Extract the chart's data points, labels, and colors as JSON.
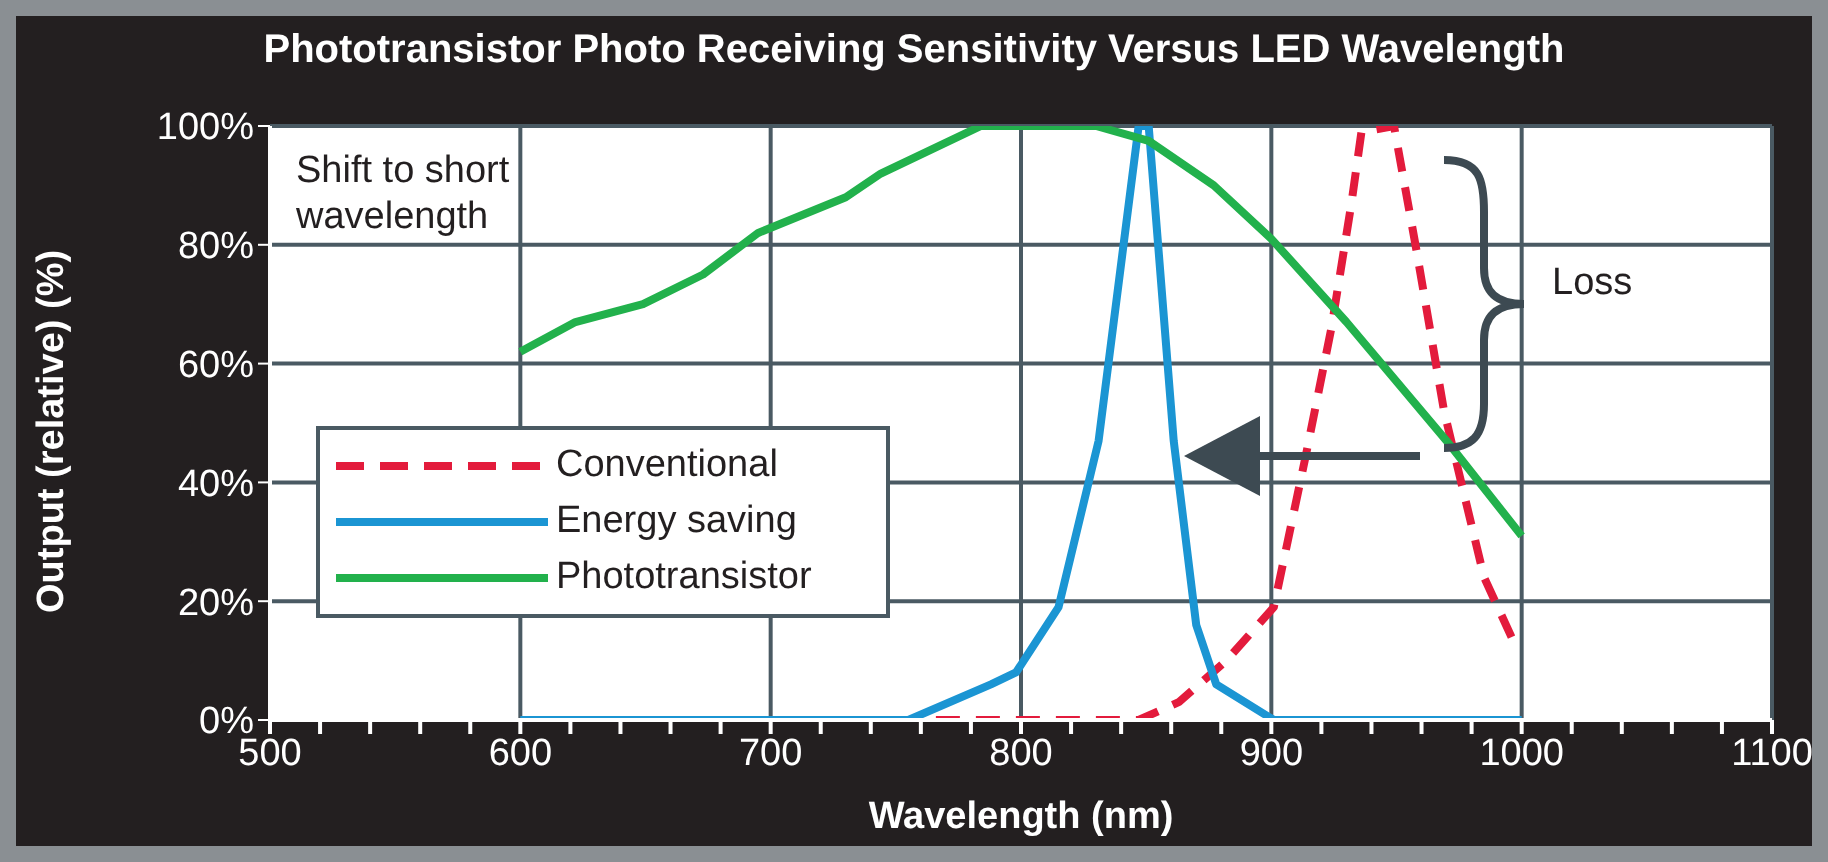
{
  "chart_data": {
    "type": "line",
    "title": "Phototransistor Photo Receiving Sensitivity Versus LED Wavelength",
    "xlabel": "Wavelength (nm)",
    "ylabel": "Output (relative) (%)",
    "xlim": [
      500,
      1100
    ],
    "xticks": [
      500,
      {
        "value": 520,
        "label": null
      },
      {
        "value": 540,
        "label": null
      },
      {
        "value": 560,
        "label": null
      },
      {
        "value": 580,
        "label": null
      },
      600,
      {
        "value": 620,
        "label": null
      },
      {
        "value": 640,
        "label": null
      },
      {
        "value": 660,
        "label": null
      },
      {
        "value": 680,
        "label": null
      },
      700,
      {
        "value": 720,
        "label": null
      },
      {
        "value": 740,
        "label": null
      },
      {
        "value": 760,
        "label": null
      },
      {
        "value": 780,
        "label": null
      },
      800,
      {
        "value": 820,
        "label": null
      },
      {
        "value": 840,
        "label": null
      },
      {
        "value": 860,
        "label": null
      },
      {
        "value": 880,
        "label": null
      },
      900,
      {
        "value": 920,
        "label": null
      },
      {
        "value": 940,
        "label": null
      },
      {
        "value": 960,
        "label": null
      },
      {
        "value": 980,
        "label": null
      },
      1000,
      {
        "value": 1020,
        "label": null
      },
      {
        "value": 1040,
        "label": null
      },
      {
        "value": 1060,
        "label": null
      },
      {
        "value": 1080,
        "label": null
      },
      1100
    ],
    "ylim": [
      0,
      100
    ],
    "yticks": [
      {
        "value": 0,
        "label": "0%"
      },
      {
        "value": 20,
        "label": "20%"
      },
      {
        "value": 40,
        "label": "40%"
      },
      {
        "value": 60,
        "label": "60%"
      },
      {
        "value": 80,
        "label": "80%"
      },
      {
        "value": 100,
        "label": "100%"
      }
    ],
    "grid": true,
    "legend": "left",
    "marker": "none",
    "series": [
      {
        "name": "Conventional",
        "color": "#e31b3c",
        "line_style": "dashed",
        "x": [
          766,
          800,
          847,
          863,
          882,
          901,
          914,
          924,
          932,
          936,
          949,
          958,
          969,
          985,
          997
        ],
        "values": [
          0,
          0,
          0,
          3,
          10,
          19,
          45,
          66,
          87,
          99,
          100,
          79,
          52,
          24,
          13
        ]
      },
      {
        "name": "Energy saving",
        "color": "#1b95d3",
        "line_style": "solid",
        "x": [
          600,
          755,
          788,
          798,
          815,
          831,
          847,
          851,
          861,
          870,
          878,
          901,
          1000
        ],
        "values": [
          0,
          0,
          6,
          8,
          19,
          47,
          100,
          100,
          47,
          16,
          6,
          0,
          0
        ]
      },
      {
        "name": "Phototransistor",
        "color": "#22b14c",
        "line_style": "solid",
        "x": [
          600,
          622,
          649,
          673,
          695,
          730,
          744,
          784,
          830,
          851,
          877,
          900,
          930,
          970,
          1000
        ],
        "values": [
          62,
          67,
          70,
          75,
          82,
          88,
          92,
          100,
          100,
          97.5,
          90,
          81,
          67,
          47,
          31
        ]
      }
    ],
    "annotations": [
      "Shift to short wavelength",
      "Loss"
    ]
  }
}
